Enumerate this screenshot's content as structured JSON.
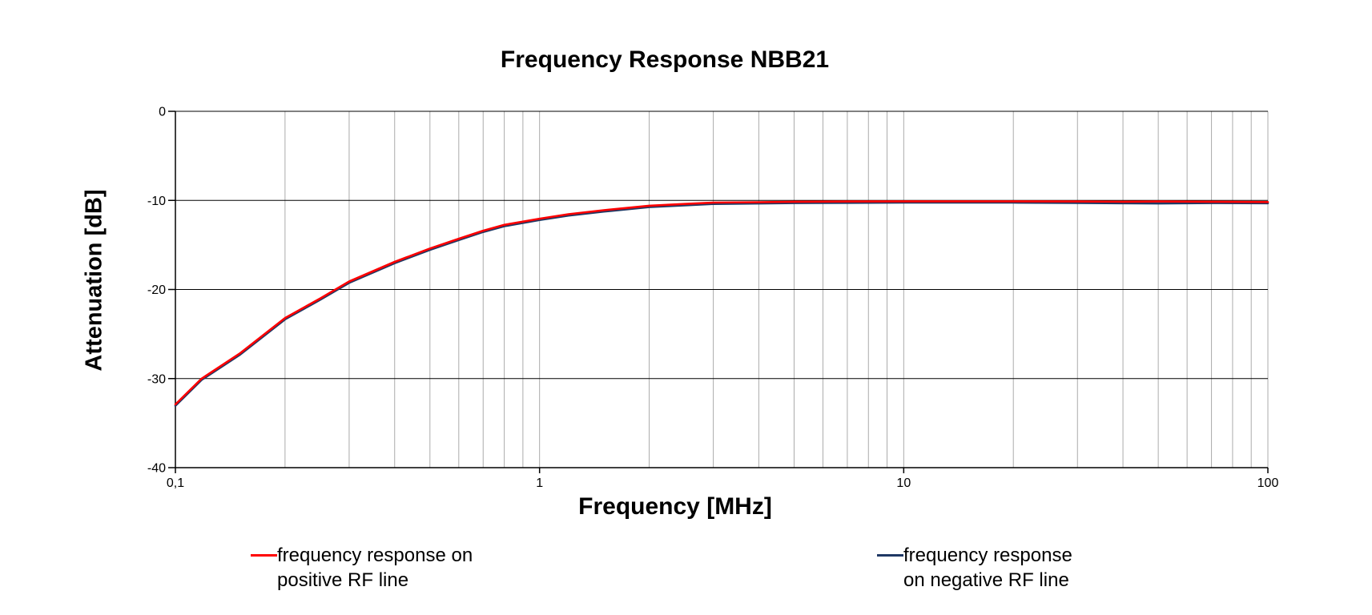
{
  "chart_data": {
    "type": "line",
    "title": "Frequency Response NBB21",
    "xlabel": "Frequency [MHz]",
    "ylabel": "Attenuation [dB]",
    "x_scale": "log",
    "xlim": [
      0.1,
      100
    ],
    "ylim": [
      -40,
      0
    ],
    "grid": "on",
    "legend_position": "bottom",
    "x_ticks": [
      0.1,
      1,
      10,
      100
    ],
    "x_tick_labels": [
      "0,1",
      "1",
      "10",
      "100"
    ],
    "y_ticks": [
      0,
      -10,
      -20,
      -30,
      -40
    ],
    "y_tick_labels": [
      "0",
      "-10",
      "-20",
      "-30",
      "-40"
    ],
    "x": [
      0.1,
      0.118,
      0.15,
      0.2,
      0.25,
      0.3,
      0.4,
      0.5,
      0.6,
      0.7,
      0.8,
      1,
      1.2,
      1.5,
      2,
      2.5,
      3,
      4,
      5,
      7,
      10,
      15,
      20,
      30,
      40,
      50,
      70,
      100
    ],
    "series": [
      {
        "name": "frequency response on positive RF line",
        "color": "#ff0000",
        "values": [
          -32.9,
          -30.0,
          -27.2,
          -23.2,
          -21.0,
          -19.1,
          -16.9,
          -15.4,
          -14.3,
          -13.4,
          -12.75,
          -12.05,
          -11.55,
          -11.1,
          -10.6,
          -10.4,
          -10.25,
          -10.2,
          -10.15,
          -10.12,
          -10.1,
          -10.1,
          -10.1,
          -10.12,
          -10.15,
          -10.12,
          -10.15,
          -10.18
        ]
      },
      {
        "name": "frequency response on negative RF line",
        "color": "#1f3864",
        "values": [
          -33.05,
          -30.15,
          -27.35,
          -23.35,
          -21.15,
          -19.25,
          -17.05,
          -15.55,
          -14.45,
          -13.55,
          -12.9,
          -12.2,
          -11.7,
          -11.25,
          -10.75,
          -10.55,
          -10.4,
          -10.35,
          -10.3,
          -10.27,
          -10.25,
          -10.25,
          -10.25,
          -10.28,
          -10.32,
          -10.35,
          -10.3,
          -10.32
        ]
      }
    ]
  },
  "legend": {
    "items": [
      {
        "line1": "frequency response on",
        "line2": "positive RF line",
        "color": "#ff0000"
      },
      {
        "line1": "frequency response",
        "line2": "on negative RF line",
        "color": "#1f3864"
      }
    ]
  },
  "colors": {
    "background": "#ffffff",
    "grid_minor": "#ababab",
    "grid_major": "#000000",
    "axis": "#000000",
    "series_positive": "#ff0000",
    "series_negative": "#1f3864"
  }
}
